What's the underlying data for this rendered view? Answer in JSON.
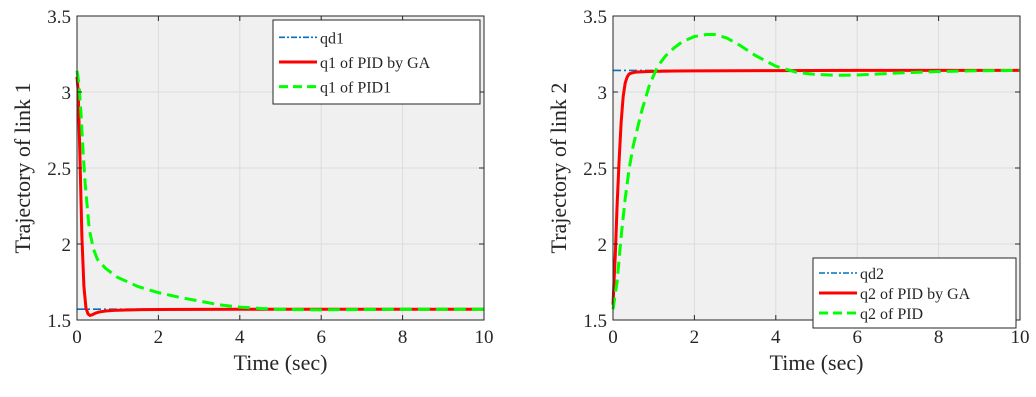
{
  "chart_data": [
    {
      "type": "line",
      "xlabel": "Time (sec)",
      "ylabel": "Trajectory of link 1",
      "xlim": [
        0,
        10
      ],
      "ylim": [
        1.5,
        3.5
      ],
      "xticks": [
        "0",
        "2",
        "4",
        "6",
        "8",
        "10"
      ],
      "yticks": [
        "1.5",
        "2",
        "2.5",
        "3",
        "3.5"
      ],
      "grid": true,
      "background": "#f0f0f0",
      "legend_position": "top-right",
      "series": [
        {
          "name": "qd1",
          "color": "#0072bd",
          "style": "dash-dot",
          "x": [
            0,
            10
          ],
          "y": [
            1.571,
            1.571
          ]
        },
        {
          "name": "q1 of PID by GA",
          "color": "#ff0000",
          "style": "solid",
          "x": [
            0,
            0.03,
            0.07,
            0.12,
            0.17,
            0.22,
            0.27,
            0.32,
            0.38,
            0.45,
            0.55,
            0.7,
            0.9,
            1.2,
            1.6,
            2,
            3,
            4,
            6,
            8,
            10
          ],
          "y": [
            3.1,
            3.0,
            2.6,
            2.05,
            1.72,
            1.58,
            1.54,
            1.53,
            1.535,
            1.545,
            1.553,
            1.559,
            1.563,
            1.566,
            1.568,
            1.569,
            1.57,
            1.571,
            1.571,
            1.571,
            1.571
          ]
        },
        {
          "name": "q1 of PID1",
          "color": "#00ff00",
          "style": "dashed",
          "x": [
            0,
            0.05,
            0.1,
            0.15,
            0.2,
            0.3,
            0.4,
            0.5,
            0.7,
            1,
            1.5,
            2,
            2.5,
            3,
            3.5,
            4,
            4.5,
            5,
            5.5,
            6,
            7,
            8,
            9,
            10
          ],
          "y": [
            3.14,
            3.05,
            2.85,
            2.6,
            2.4,
            2.1,
            1.97,
            1.9,
            1.84,
            1.78,
            1.72,
            1.68,
            1.65,
            1.625,
            1.6,
            1.585,
            1.576,
            1.571,
            1.568,
            1.567,
            1.569,
            1.571,
            1.571,
            1.571
          ]
        }
      ]
    },
    {
      "type": "line",
      "xlabel": "Time (sec)",
      "ylabel": "Trajectory of link 2",
      "xlim": [
        0,
        10
      ],
      "ylim": [
        1.5,
        3.5
      ],
      "xticks": [
        "0",
        "2",
        "4",
        "6",
        "8",
        "10"
      ],
      "yticks": [
        "1.5",
        "2",
        "2.5",
        "3",
        "3.5"
      ],
      "grid": true,
      "background": "#f0f0f0",
      "legend_position": "bottom-right",
      "series": [
        {
          "name": "qd2",
          "color": "#0072bd",
          "style": "dash-dot",
          "x": [
            0,
            10
          ],
          "y": [
            3.142,
            3.142
          ]
        },
        {
          "name": "q2 of PID by GA",
          "color": "#ff0000",
          "style": "solid",
          "x": [
            0,
            0.03,
            0.06,
            0.1,
            0.15,
            0.2,
            0.25,
            0.3,
            0.35,
            0.4,
            0.5,
            0.6,
            0.8,
            1,
            1.5,
            2,
            3,
            4,
            6,
            8,
            10
          ],
          "y": [
            1.6,
            1.78,
            1.95,
            2.25,
            2.55,
            2.8,
            2.97,
            3.06,
            3.1,
            3.12,
            3.128,
            3.132,
            3.134,
            3.136,
            3.138,
            3.139,
            3.14,
            3.141,
            3.142,
            3.142,
            3.142
          ]
        },
        {
          "name": "q2 of PID",
          "color": "#00ff00",
          "style": "dashed",
          "x": [
            0,
            0.1,
            0.2,
            0.3,
            0.4,
            0.5,
            0.7,
            0.9,
            1.1,
            1.3,
            1.5,
            1.7,
            2.0,
            2.3,
            2.5,
            2.8,
            3.1,
            3.5,
            4.0,
            4.5,
            5.0,
            5.5,
            6.0,
            6.5,
            7.0,
            8.0,
            9.0,
            10.0
          ],
          "y": [
            1.57,
            1.75,
            2.05,
            2.3,
            2.5,
            2.65,
            2.87,
            3.05,
            3.17,
            3.24,
            3.29,
            3.33,
            3.365,
            3.378,
            3.378,
            3.355,
            3.31,
            3.24,
            3.17,
            3.13,
            3.115,
            3.11,
            3.112,
            3.118,
            3.125,
            3.135,
            3.14,
            3.142
          ]
        }
      ]
    }
  ]
}
